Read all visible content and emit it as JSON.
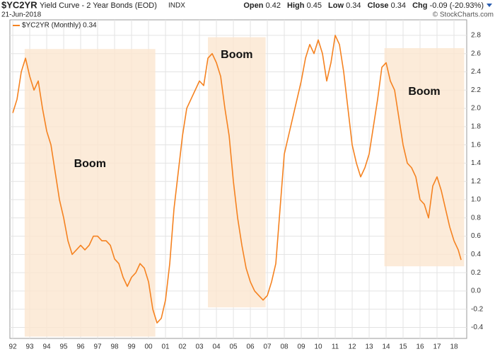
{
  "header": {
    "symbol": "$YC2YR",
    "exchange": "INDX",
    "date": "21-Jun-2018",
    "copyright": "© StockCharts.com",
    "quote": {
      "open_label": "Open",
      "open": "0.42",
      "high_label": "High",
      "high": "0.45",
      "low_label": "Low",
      "low": "0.34",
      "close_label": "Close",
      "close": "0.34",
      "chg_label": "Chg",
      "chg": "-0.09 (-20.93%)"
    }
  },
  "chart_data": {
    "type": "line",
    "title": "Yield Curve - 2 Year Bonds (EOD)",
    "grid": true,
    "legend": "top-left",
    "x": [
      1992,
      1992.25,
      1992.5,
      1992.75,
      1993,
      1993.25,
      1993.5,
      1993.75,
      1994,
      1994.25,
      1994.5,
      1994.75,
      1995,
      1995.25,
      1995.5,
      1995.75,
      1996,
      1996.25,
      1996.5,
      1996.75,
      1997,
      1997.25,
      1997.5,
      1997.75,
      1998,
      1998.25,
      1998.5,
      1998.75,
      1999,
      1999.25,
      1999.5,
      1999.75,
      2000,
      2000.25,
      2000.5,
      2000.75,
      2001,
      2001.25,
      2001.5,
      2001.75,
      2002,
      2002.25,
      2002.5,
      2002.75,
      2003,
      2003.25,
      2003.5,
      2003.75,
      2004,
      2004.25,
      2004.5,
      2004.75,
      2005,
      2005.25,
      2005.5,
      2005.75,
      2006,
      2006.25,
      2006.5,
      2006.75,
      2007,
      2007.25,
      2007.5,
      2007.75,
      2008,
      2008.25,
      2008.5,
      2008.75,
      2009,
      2009.25,
      2009.5,
      2009.75,
      2010,
      2010.25,
      2010.5,
      2010.75,
      2011,
      2011.25,
      2011.5,
      2011.75,
      2012,
      2012.25,
      2012.5,
      2012.75,
      2013,
      2013.25,
      2013.5,
      2013.75,
      2014,
      2014.25,
      2014.5,
      2014.75,
      2015,
      2015.25,
      2015.5,
      2015.75,
      2016,
      2016.25,
      2016.5,
      2016.75,
      2017,
      2017.25,
      2017.5,
      2017.75,
      2018,
      2018.25,
      2018.42
    ],
    "series": [
      {
        "name": "$YC2YR (Monthly) 0.34",
        "color": "#f58220",
        "values": [
          1.95,
          2.1,
          2.4,
          2.55,
          2.35,
          2.2,
          2.3,
          2.0,
          1.75,
          1.6,
          1.3,
          1.0,
          0.8,
          0.55,
          0.4,
          0.45,
          0.5,
          0.45,
          0.5,
          0.6,
          0.6,
          0.55,
          0.55,
          0.5,
          0.35,
          0.3,
          0.15,
          0.05,
          0.15,
          0.2,
          0.3,
          0.25,
          0.1,
          -0.2,
          -0.35,
          -0.3,
          -0.1,
          0.3,
          0.9,
          1.3,
          1.7,
          2.0,
          2.1,
          2.2,
          2.3,
          2.25,
          2.55,
          2.6,
          2.5,
          2.35,
          2.0,
          1.7,
          1.2,
          0.8,
          0.5,
          0.25,
          0.1,
          0.0,
          -0.05,
          -0.1,
          -0.05,
          0.1,
          0.3,
          0.9,
          1.5,
          1.7,
          1.9,
          2.1,
          2.3,
          2.55,
          2.7,
          2.6,
          2.75,
          2.6,
          2.3,
          2.5,
          2.8,
          2.7,
          2.4,
          2.0,
          1.6,
          1.4,
          1.25,
          1.35,
          1.5,
          1.8,
          2.1,
          2.45,
          2.5,
          2.3,
          2.2,
          1.9,
          1.6,
          1.4,
          1.35,
          1.25,
          1.0,
          0.95,
          0.8,
          1.15,
          1.25,
          1.1,
          0.9,
          0.7,
          0.55,
          0.45,
          0.34
        ]
      }
    ],
    "annotations": [
      {
        "text": "Boom",
        "x": [
          1992.7,
          2000.4
        ],
        "y": [
          -0.5,
          2.65
        ],
        "color": "#fbe6cf"
      },
      {
        "text": "Boom",
        "x": [
          2003.5,
          2006.9
        ],
        "y": [
          -0.18,
          2.78
        ],
        "color": "#fbe6cf"
      },
      {
        "text": "Boom",
        "x": [
          2013.9,
          2018.6
        ],
        "y": [
          0.27,
          2.66
        ],
        "color": "#fbe6cf"
      }
    ],
    "xlim": [
      1991.83,
      2018.75
    ],
    "ylim": [
      -0.52,
      2.97
    ],
    "xticks": [
      {
        "value": 1992,
        "label": "92"
      },
      {
        "value": 1993,
        "label": "93"
      },
      {
        "value": 1994,
        "label": "94"
      },
      {
        "value": 1995,
        "label": "95"
      },
      {
        "value": 1996,
        "label": "96"
      },
      {
        "value": 1997,
        "label": "97"
      },
      {
        "value": 1998,
        "label": "98"
      },
      {
        "value": 1999,
        "label": "99"
      },
      {
        "value": 2000,
        "label": "00"
      },
      {
        "value": 2001,
        "label": "01"
      },
      {
        "value": 2002,
        "label": "02"
      },
      {
        "value": 2003,
        "label": "03"
      },
      {
        "value": 2004,
        "label": "04"
      },
      {
        "value": 2005,
        "label": "05"
      },
      {
        "value": 2006,
        "label": "06"
      },
      {
        "value": 2007,
        "label": "07"
      },
      {
        "value": 2008,
        "label": "08"
      },
      {
        "value": 2009,
        "label": "09"
      },
      {
        "value": 2010,
        "label": "10"
      },
      {
        "value": 2011,
        "label": "11"
      },
      {
        "value": 2012,
        "label": "12"
      },
      {
        "value": 2013,
        "label": "13"
      },
      {
        "value": 2014,
        "label": "14"
      },
      {
        "value": 2015,
        "label": "15"
      },
      {
        "value": 2016,
        "label": "16"
      },
      {
        "value": 2017,
        "label": "17"
      },
      {
        "value": 2018,
        "label": "18"
      }
    ],
    "yticks": [
      -0.4,
      -0.2,
      {
        "value": 0,
        "label": "0.0"
      },
      0.2,
      0.4,
      0.6,
      0.8,
      {
        "value": 1,
        "label": "1.0"
      },
      1.2,
      1.4,
      1.6,
      1.8,
      {
        "value": 2,
        "label": "2.0"
      },
      2.2,
      2.4,
      2.6,
      2.8
    ]
  }
}
